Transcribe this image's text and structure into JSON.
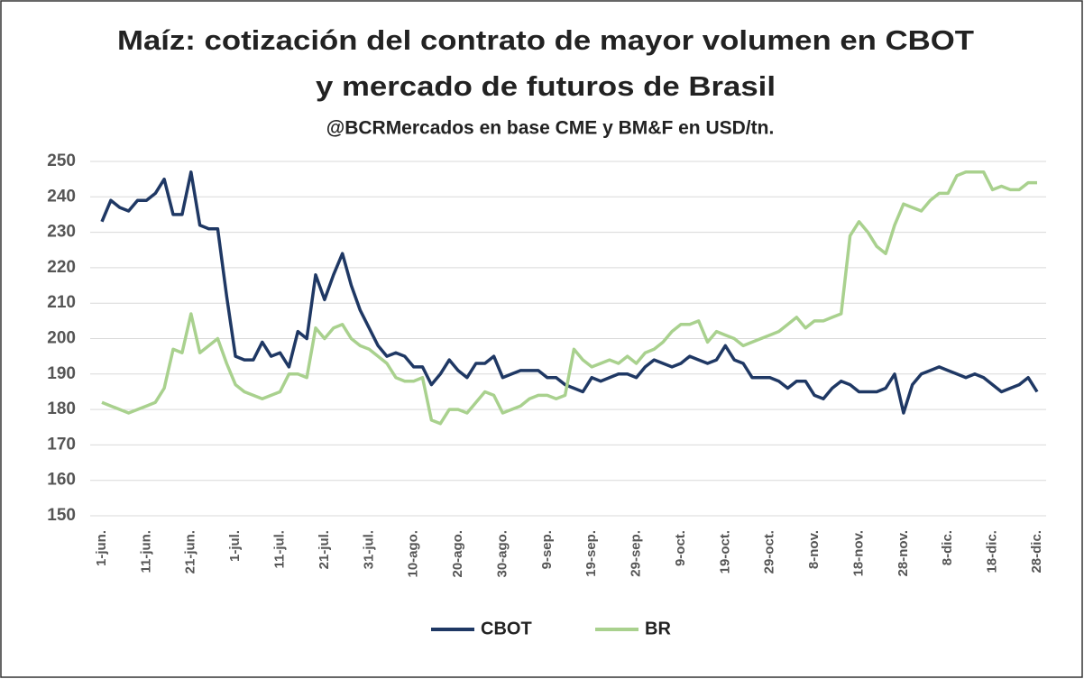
{
  "chart_data": {
    "type": "line",
    "title": [
      "Maíz: cotización del contrato de mayor volumen en CBOT",
      "y mercado de futuros de Brasil"
    ],
    "subtitle": "@BCRMercados en base CME y BM&F en USD/tn.",
    "categories": [
      "1-jun.",
      null,
      null,
      null,
      null,
      "11-jun.",
      null,
      null,
      null,
      null,
      "21-jun.",
      null,
      null,
      null,
      null,
      "1-jul.",
      null,
      null,
      null,
      null,
      "11-jul.",
      null,
      null,
      null,
      null,
      "21-jul.",
      null,
      null,
      null,
      null,
      "31-jul.",
      null,
      null,
      null,
      null,
      "10-ago.",
      null,
      null,
      null,
      null,
      "20-ago.",
      null,
      null,
      null,
      null,
      "30-ago.",
      null,
      null,
      null,
      null,
      "9-sep.",
      null,
      null,
      null,
      null,
      "19-sep.",
      null,
      null,
      null,
      null,
      "29-sep.",
      null,
      null,
      null,
      null,
      "9-oct.",
      null,
      null,
      null,
      null,
      "19-oct.",
      null,
      null,
      null,
      null,
      "29-oct.",
      null,
      null,
      null,
      null,
      "8-nov.",
      null,
      null,
      null,
      null,
      "18-nov.",
      null,
      null,
      null,
      null,
      "28-nov.",
      null,
      null,
      null,
      null,
      "8-dic.",
      null,
      null,
      null,
      null,
      "18-dic.",
      null,
      null,
      null,
      null,
      "28-dic."
    ],
    "series": [
      {
        "name": "CBOT",
        "color": "#1f3864",
        "values": [
          233,
          239,
          237,
          236,
          239,
          239,
          241,
          245,
          235,
          235,
          247,
          232,
          231,
          231,
          212,
          195,
          194,
          194,
          199,
          195,
          196,
          192,
          202,
          200,
          218,
          211,
          218,
          224,
          215,
          208,
          203,
          198,
          195,
          196,
          195,
          192,
          192,
          187,
          190,
          194,
          191,
          189,
          193,
          193,
          195,
          189,
          190,
          191,
          191,
          191,
          189,
          189,
          187,
          186,
          185,
          189,
          188,
          189,
          190,
          190,
          189,
          192,
          194,
          193,
          192,
          193,
          195,
          194,
          193,
          194,
          198,
          194,
          193,
          189,
          189,
          189,
          188,
          186,
          188,
          188,
          184,
          183,
          186,
          188,
          187,
          185,
          185,
          185,
          186,
          190,
          179,
          187,
          190,
          191,
          192,
          191,
          190,
          189,
          190,
          189,
          187,
          185,
          186,
          187,
          189,
          185
        ]
      },
      {
        "name": "BR",
        "color": "#a9d18e",
        "values": [
          182,
          181,
          180,
          179,
          180,
          181,
          182,
          186,
          197,
          196,
          207,
          196,
          198,
          200,
          193,
          187,
          185,
          184,
          183,
          184,
          185,
          190,
          190,
          189,
          203,
          200,
          203,
          204,
          200,
          198,
          197,
          195,
          193,
          189,
          188,
          188,
          189,
          177,
          176,
          180,
          180,
          179,
          182,
          185,
          184,
          179,
          180,
          181,
          183,
          184,
          184,
          183,
          184,
          197,
          194,
          192,
          193,
          194,
          193,
          195,
          193,
          196,
          197,
          199,
          202,
          204,
          204,
          205,
          199,
          202,
          201,
          200,
          198,
          199,
          200,
          201,
          202,
          204,
          206,
          203,
          205,
          205,
          206,
          207,
          229,
          233,
          230,
          226,
          224,
          232,
          238,
          237,
          236,
          239,
          241,
          241,
          246,
          247,
          247,
          247,
          242,
          243,
          242,
          242,
          244,
          244
        ]
      }
    ],
    "ylim": [
      150,
      250
    ],
    "yticks": [
      150,
      160,
      170,
      180,
      190,
      200,
      210,
      220,
      230,
      240,
      250
    ],
    "grid": true,
    "legend": "bottom"
  }
}
